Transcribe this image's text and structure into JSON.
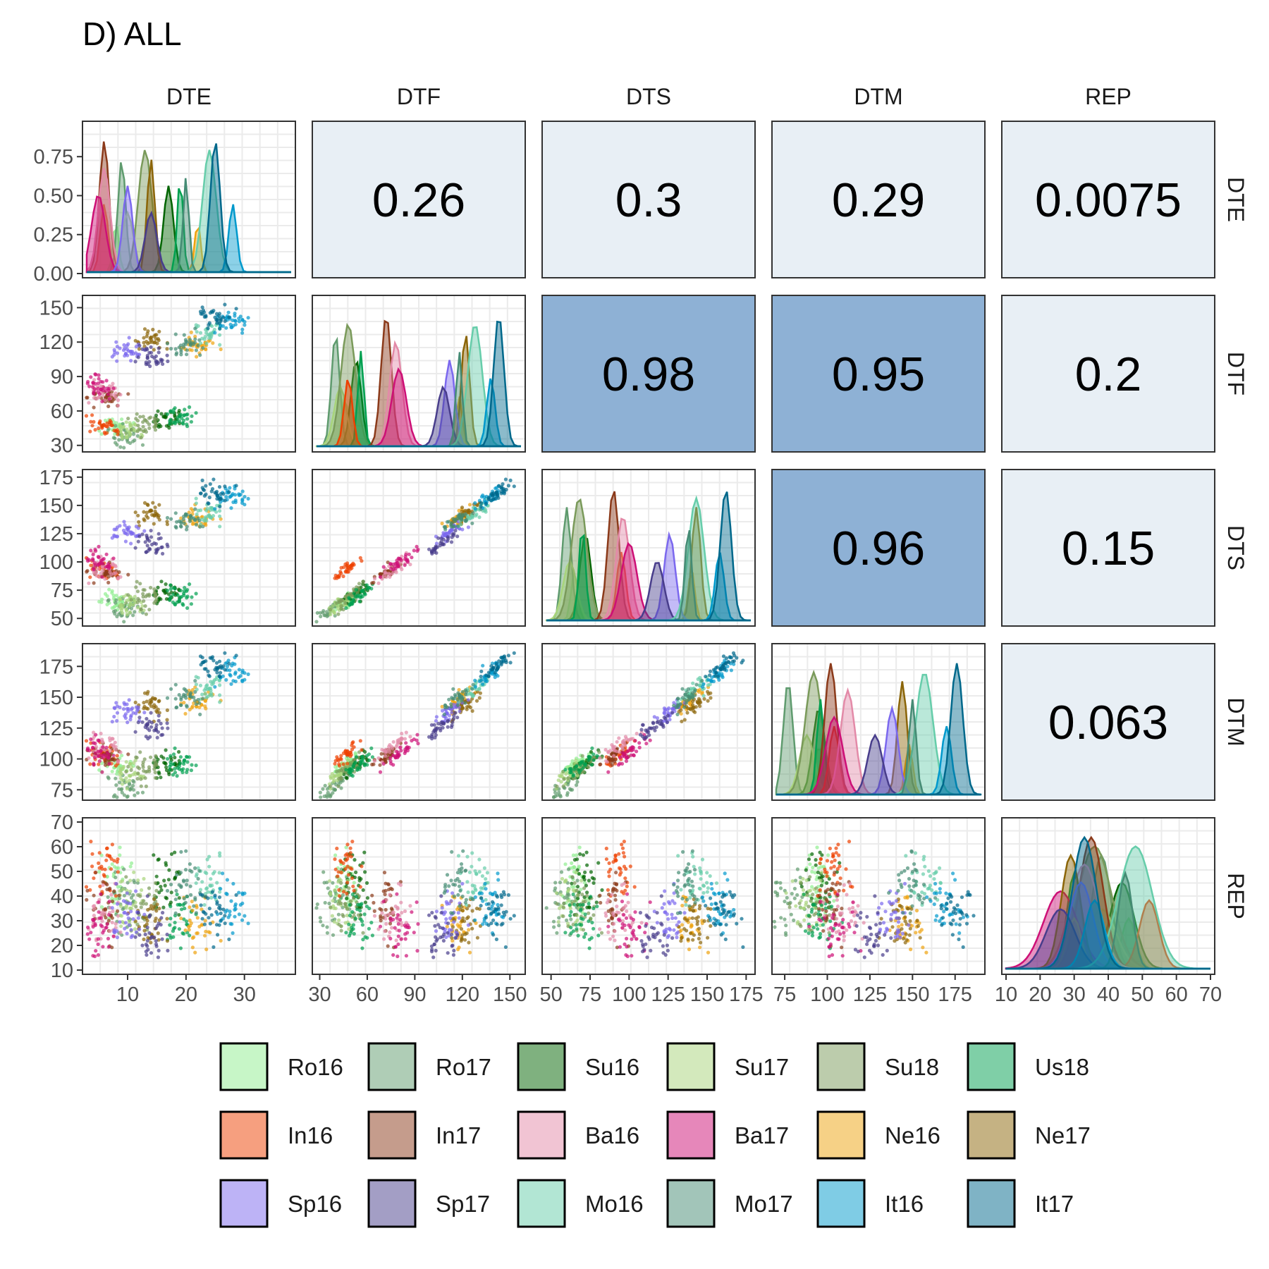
{
  "title": "D) ALL",
  "chart_data": {
    "type": "scatter",
    "title": "D) ALL",
    "variables": [
      "DTE",
      "DTF",
      "DTS",
      "DTM",
      "REP"
    ],
    "ranges": {
      "DTE": [
        3,
        38
      ],
      "DTF": [
        28,
        157
      ],
      "DTS": [
        47,
        178
      ],
      "DTM": [
        70,
        190
      ],
      "REP": [
        10,
        70
      ]
    },
    "y_ticks": {
      "DTE": [
        "0.00",
        "0.25",
        "0.50",
        "0.75"
      ],
      "DTF": [
        "30",
        "60",
        "90",
        "120",
        "150"
      ],
      "DTS": [
        "50",
        "75",
        "100",
        "125",
        "150",
        "175"
      ],
      "DTM": [
        "75",
        "100",
        "125",
        "150",
        "175"
      ],
      "REP": [
        "10",
        "20",
        "30",
        "40",
        "50",
        "60",
        "70"
      ]
    },
    "x_ticks": {
      "DTE": [
        "10",
        "20",
        "30"
      ],
      "DTF": [
        "30",
        "60",
        "90",
        "120",
        "150"
      ],
      "DTS": [
        "50",
        "75",
        "100",
        "125",
        "150",
        "175"
      ],
      "DTM": [
        "75",
        "100",
        "125",
        "150",
        "175"
      ],
      "REP": [
        "10",
        "20",
        "30",
        "40",
        "50",
        "60",
        "70"
      ]
    },
    "density_ymax": 0.95,
    "correlations": [
      {
        "row": "DTE",
        "col": "DTF",
        "label": "0.26"
      },
      {
        "row": "DTE",
        "col": "DTS",
        "label": "0.3"
      },
      {
        "row": "DTE",
        "col": "DTM",
        "label": "0.29"
      },
      {
        "row": "DTE",
        "col": "REP",
        "label": "0.0075"
      },
      {
        "row": "DTF",
        "col": "DTS",
        "label": "0.98"
      },
      {
        "row": "DTF",
        "col": "DTM",
        "label": "0.95"
      },
      {
        "row": "DTF",
        "col": "REP",
        "label": "0.2"
      },
      {
        "row": "DTS",
        "col": "DTM",
        "label": "0.96"
      },
      {
        "row": "DTS",
        "col": "REP",
        "label": "0.15"
      },
      {
        "row": "DTM",
        "col": "REP",
        "label": "0.063"
      }
    ],
    "corr_colors": {
      "low": "#e8eff5",
      "high": "#8eb1d5"
    },
    "legend": [
      "Ro16",
      "Ro17",
      "Su16",
      "Su17",
      "Su18",
      "Us18",
      "In16",
      "In17",
      "Ba16",
      "Ba17",
      "Ne16",
      "Ne17",
      "Sp16",
      "Sp17",
      "Mo16",
      "Mo17",
      "It16",
      "It17"
    ],
    "groups": [
      {
        "name": "Ro16",
        "color": "#90ee90",
        "DTE": 8,
        "DTF": 46,
        "DTS": 65,
        "DTM": 95,
        "REP": 46
      },
      {
        "name": "Ro17",
        "color": "#5f9b6e",
        "DTE": 9,
        "DTF": 40,
        "DTS": 60,
        "DTM": 77,
        "REP": 38
      },
      {
        "name": "Su16",
        "color": "#006400",
        "DTE": 17,
        "DTF": 53,
        "DTS": 72,
        "DTM": 95,
        "REP": 44
      },
      {
        "name": "Su17",
        "color": "#a8d47a",
        "DTE": 10,
        "DTF": 43,
        "DTS": 62,
        "DTM": 88,
        "REP": 38
      },
      {
        "name": "Su18",
        "color": "#7a9a5a",
        "DTE": 13,
        "DTF": 48,
        "DTS": 68,
        "DTM": 92,
        "REP": 36
      },
      {
        "name": "Us18",
        "color": "#00a050",
        "DTE": 19,
        "DTF": 56,
        "DTS": 70,
        "DTM": 96,
        "REP": 30
      },
      {
        "name": "In16",
        "color": "#ee4000",
        "DTE": 6,
        "DTF": 48,
        "DTS": 95,
        "DTM": 104,
        "REP": 52
      },
      {
        "name": "In17",
        "color": "#8b3a1a",
        "DTE": 6,
        "DTF": 72,
        "DTS": 90,
        "DTM": 102,
        "REP": 35
      },
      {
        "name": "Ba16",
        "color": "#e38aa8",
        "DTE": 6,
        "DTF": 78,
        "DTS": 96,
        "DTM": 112,
        "REP": 33
      },
      {
        "name": "Ba17",
        "color": "#cd1076",
        "DTE": 5,
        "DTF": 80,
        "DTS": 100,
        "DTM": 104,
        "REP": 26
      },
      {
        "name": "Ne16",
        "color": "#eea30e",
        "DTE": 22,
        "DTF": 118,
        "DTS": 140,
        "DTM": 148,
        "REP": 30
      },
      {
        "name": "Ne17",
        "color": "#8b6508",
        "DTE": 14,
        "DTF": 122,
        "DTS": 143,
        "DTM": 144,
        "REP": 29
      },
      {
        "name": "Sp16",
        "color": "#7b68ee",
        "DTE": 10,
        "DTF": 112,
        "DTS": 126,
        "DTM": 138,
        "REP": 32
      },
      {
        "name": "Sp17",
        "color": "#483d8b",
        "DTE": 14,
        "DTF": 108,
        "DTS": 118,
        "DTM": 128,
        "REP": 26
      },
      {
        "name": "Mo16",
        "color": "#66cdaa",
        "DTE": 24,
        "DTF": 128,
        "DTS": 143,
        "DTM": 157,
        "REP": 48
      },
      {
        "name": "Mo17",
        "color": "#458b74",
        "DTE": 20,
        "DTF": 118,
        "DTS": 138,
        "DTM": 150,
        "REP": 45
      },
      {
        "name": "It16",
        "color": "#0099cc",
        "DTE": 28,
        "DTF": 138,
        "DTS": 158,
        "DTM": 170,
        "REP": 36
      },
      {
        "name": "It17",
        "color": "#00688b",
        "DTE": 25,
        "DTF": 143,
        "DTS": 162,
        "DTM": 176,
        "REP": 33
      }
    ]
  }
}
